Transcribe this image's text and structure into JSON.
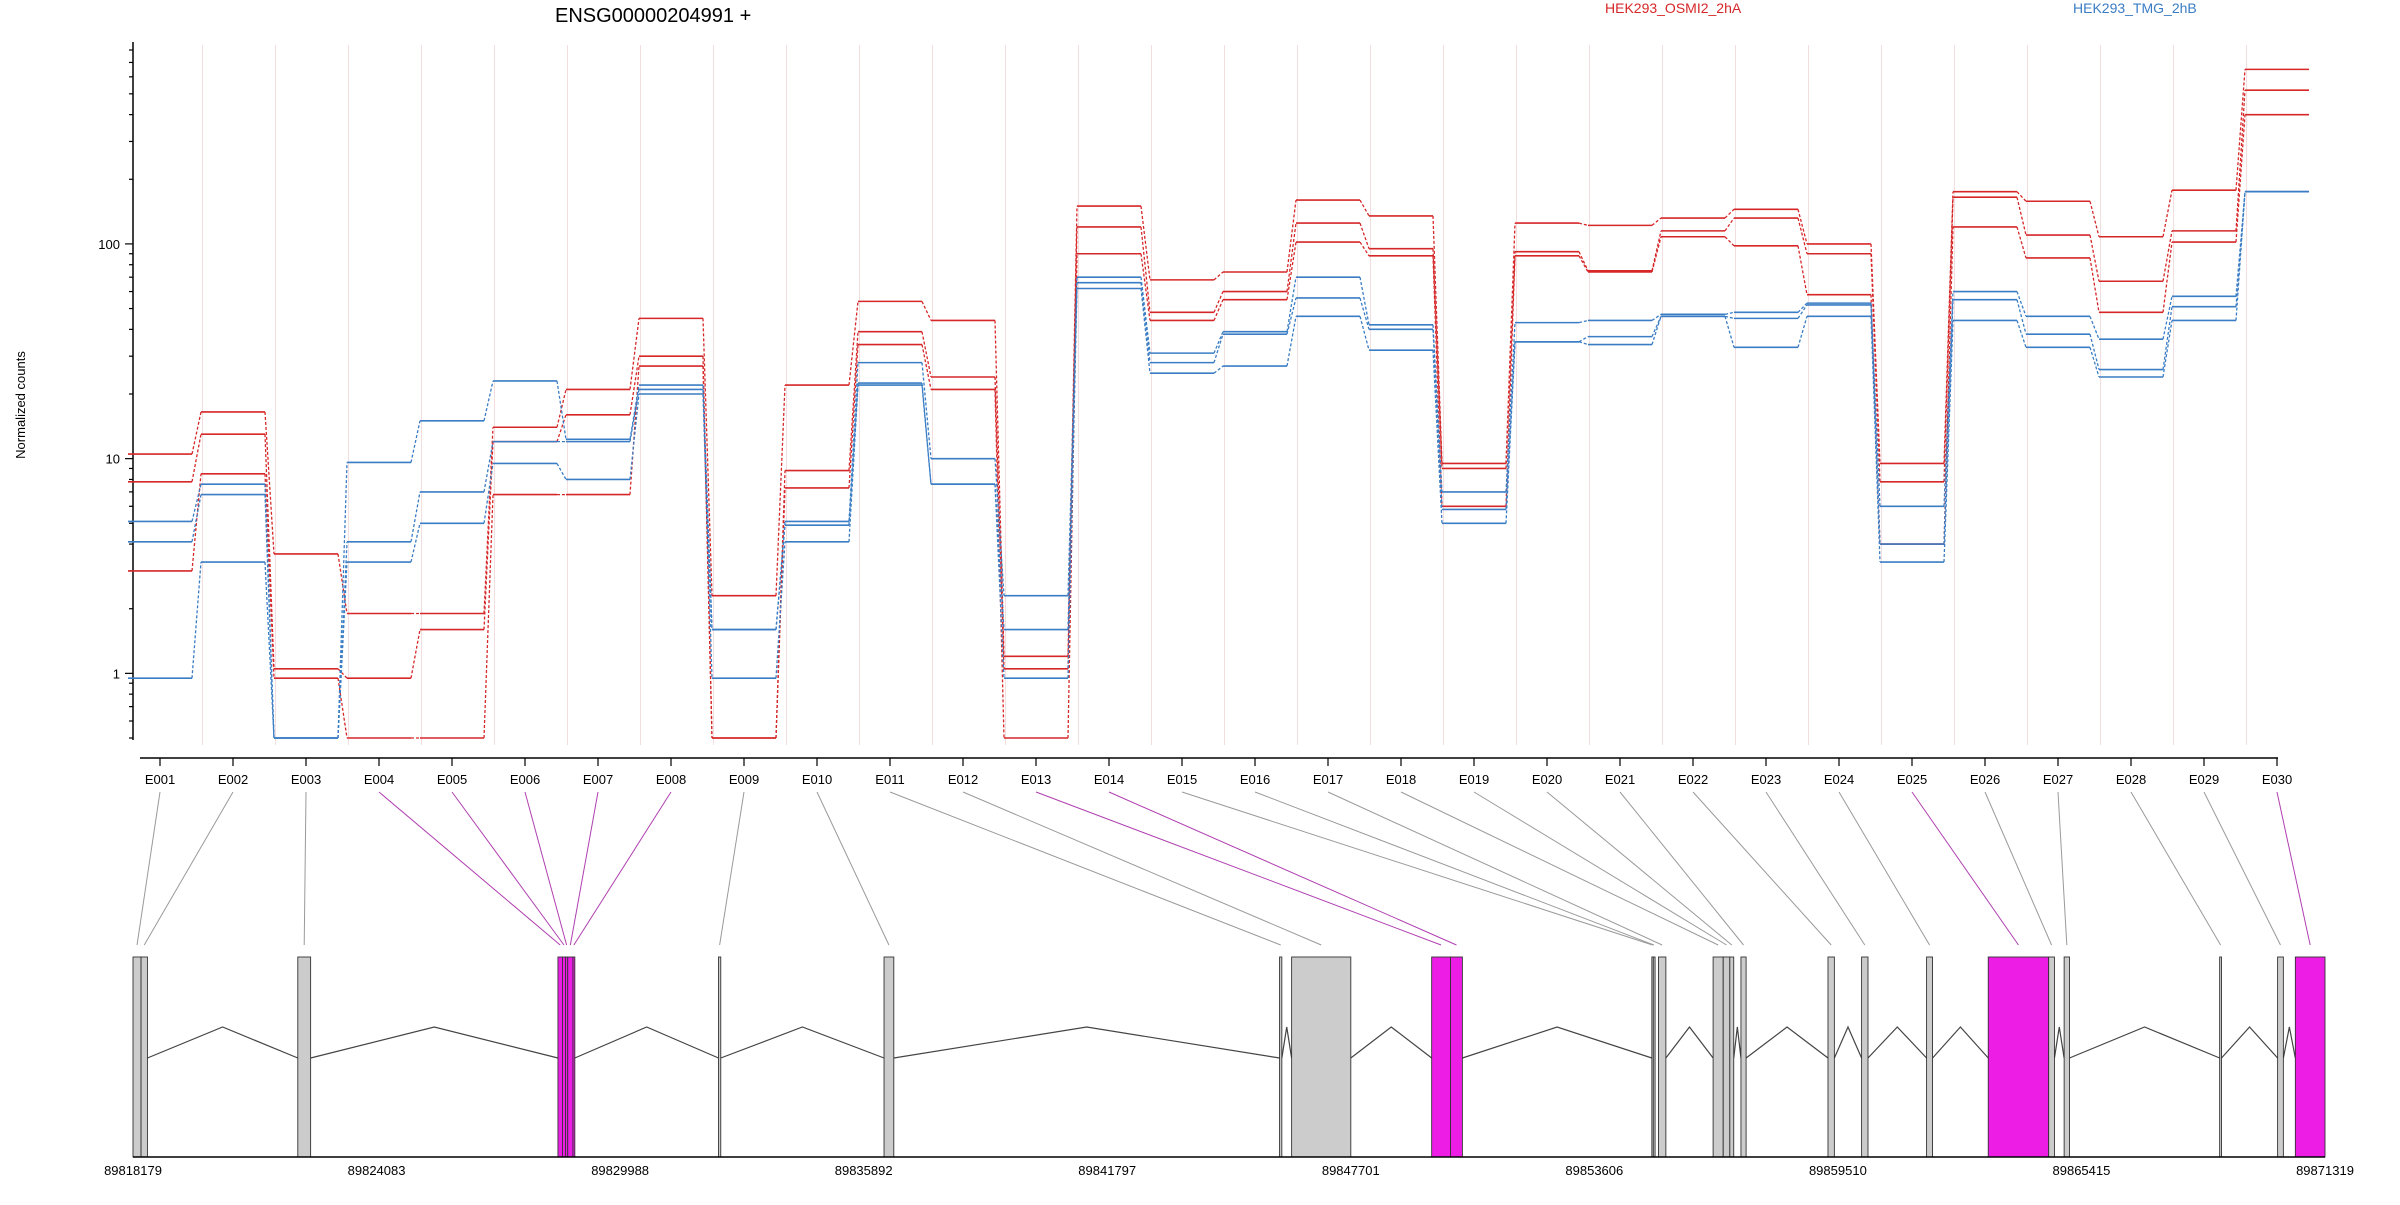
{
  "colors": {
    "condition_a": "#d62728",
    "condition_b": "#3a7dc4",
    "highlight": "#ee1de6",
    "exon_fill": "#cccccc",
    "map_line_default": "#9a9a9a",
    "map_line_highlight": "#b040b0"
  },
  "chart_data": {
    "type": "line",
    "title": "ENSG00000204991 +",
    "ylabel": "Normalized counts",
    "yscale": "log",
    "ylim": [
      0.5,
      800
    ],
    "yticks": [
      1,
      10,
      100
    ],
    "ytick_labels": [
      "1",
      "10",
      "100"
    ],
    "legend": [
      {
        "name": "HEK293_OSMI2_2hA",
        "color": "#d62728"
      },
      {
        "name": "HEK293_TMG_2hB",
        "color": "#3a7dc4"
      }
    ],
    "categories": [
      "E001",
      "E002",
      "E003",
      "E004",
      "E005",
      "E006",
      "E007",
      "E008",
      "E009",
      "E010",
      "E011",
      "E012",
      "E013",
      "E014",
      "E015",
      "E016",
      "E017",
      "E018",
      "E019",
      "E020",
      "E021",
      "E022",
      "E023",
      "E024",
      "E025",
      "E026",
      "E027",
      "E028",
      "E029",
      "E030"
    ],
    "series": [
      {
        "group": "HEK293_OSMI2_2hA",
        "color": "#d62728",
        "values": [
          10.5,
          16.5,
          3.6,
          1.9,
          1.9,
          14,
          21,
          45,
          2.3,
          22,
          54,
          44,
          1.2,
          150,
          68,
          74,
          160,
          135,
          9.5,
          125,
          122,
          132,
          145,
          100,
          9.5,
          175,
          158,
          108,
          178,
          650
        ]
      },
      {
        "group": "HEK293_OSMI2_2hA",
        "color": "#d62728",
        "values": [
          7.8,
          13,
          1.05,
          0.95,
          1.6,
          12,
          16,
          30,
          0.5,
          8.8,
          39,
          24,
          1.05,
          120,
          48,
          60,
          125,
          95,
          9,
          92,
          75,
          115,
          132,
          90,
          7.8,
          165,
          110,
          67,
          115,
          520
        ]
      },
      {
        "group": "HEK293_OSMI2_2hA",
        "color": "#d62728",
        "values": [
          3,
          8.5,
          0.95,
          0.5,
          0.5,
          6.8,
          6.8,
          27,
          0.5,
          7.3,
          34,
          21,
          0.5,
          90,
          44,
          55,
          102,
          88,
          6,
          88,
          74,
          108,
          98,
          58,
          4,
          120,
          86,
          48,
          102,
          400
        ]
      },
      {
        "group": "HEK293_TMG_2hB",
        "color": "#3a7dc4",
        "values": [
          5.1,
          7.6,
          0.5,
          9.6,
          15,
          23,
          12.3,
          22,
          1.6,
          5.1,
          28,
          10,
          2.3,
          70,
          31,
          39,
          70,
          42,
          7,
          43,
          44,
          47,
          48,
          53,
          6,
          60,
          46,
          36,
          57,
          175
        ]
      },
      {
        "group": "HEK293_TMG_2hB",
        "color": "#3a7dc4",
        "values": [
          4.1,
          6.8,
          0.5,
          4.1,
          7,
          12,
          12,
          21,
          1.6,
          4.9,
          22.5,
          7.6,
          1.6,
          66,
          28,
          38,
          56,
          40,
          5.8,
          35,
          37,
          46,
          45,
          52,
          4,
          55,
          38,
          26,
          51,
          175
        ]
      },
      {
        "group": "HEK293_TMG_2hB",
        "color": "#3a7dc4",
        "values": [
          0.95,
          3.3,
          0.5,
          3.3,
          5,
          9.5,
          8,
          20,
          0.95,
          4.1,
          22,
          7.6,
          0.95,
          62,
          25,
          27,
          46,
          32,
          5,
          35,
          34,
          46,
          33,
          46,
          3.3,
          44,
          33,
          24,
          44,
          175
        ]
      }
    ],
    "gene_model": {
      "coord_labels": [
        "89818179",
        "89824083",
        "89829988",
        "89835892",
        "89841797",
        "89847701",
        "89853606",
        "89859510",
        "89865415",
        "89871319"
      ],
      "coord_min": 89818179,
      "coord_max": 89871319,
      "exon_segments": [
        {
          "exon": "E001",
          "start": 89818179,
          "end": 89818374,
          "highlight": false
        },
        {
          "exon": "E002",
          "start": 89818374,
          "end": 89818529,
          "highlight": false
        },
        {
          "exon": "E003",
          "start": 89822174,
          "end": 89822485,
          "highlight": false
        },
        {
          "exon": "E004",
          "start": 89828481,
          "end": 89828590,
          "highlight": true
        },
        {
          "exon": "E005",
          "start": 89828590,
          "end": 89828663,
          "highlight": true
        },
        {
          "exon": "E006",
          "start": 89828663,
          "end": 89828718,
          "highlight": true
        },
        {
          "exon": "E007",
          "start": 89828718,
          "end": 89828845,
          "highlight": true
        },
        {
          "exon": "E008",
          "start": 89828845,
          "end": 89828890,
          "highlight": true
        },
        {
          "exon": "E009",
          "start": 89832373,
          "end": 89832428,
          "highlight": false
        },
        {
          "exon": "E010",
          "start": 89836386,
          "end": 89836623,
          "highlight": false
        },
        {
          "exon": "E011",
          "start": 89845975,
          "end": 89846030,
          "highlight": false
        },
        {
          "exon": "E012",
          "start": 89846267,
          "end": 89847702,
          "highlight": false
        },
        {
          "exon": "E013",
          "start": 89849662,
          "end": 89850119,
          "highlight": true
        },
        {
          "exon": "E014",
          "start": 89850119,
          "end": 89850407,
          "highlight": true
        },
        {
          "exon": "E015",
          "start": 89855000,
          "end": 89855035,
          "highlight": false
        },
        {
          "exon": "E016",
          "start": 89855035,
          "end": 89855070,
          "highlight": false
        },
        {
          "exon": "E017",
          "start": 89855160,
          "end": 89855340,
          "highlight": false
        },
        {
          "exon": "E018",
          "start": 89856485,
          "end": 89856730,
          "highlight": false
        },
        {
          "exon": "E019",
          "start": 89856730,
          "end": 89856890,
          "highlight": false
        },
        {
          "exon": "E020",
          "start": 89856890,
          "end": 89856985,
          "highlight": false
        },
        {
          "exon": "E021",
          "start": 89857160,
          "end": 89857285,
          "highlight": false
        },
        {
          "exon": "E022",
          "start": 89859270,
          "end": 89859425,
          "highlight": false
        },
        {
          "exon": "E023",
          "start": 89860085,
          "end": 89860240,
          "highlight": false
        },
        {
          "exon": "E024",
          "start": 89861660,
          "end": 89861805,
          "highlight": false
        },
        {
          "exon": "E025",
          "start": 89863155,
          "end": 89864620,
          "highlight": true
        },
        {
          "exon": "E026",
          "start": 89864620,
          "end": 89864760,
          "highlight": false
        },
        {
          "exon": "E027",
          "start": 89864995,
          "end": 89865125,
          "highlight": false
        },
        {
          "exon": "E028",
          "start": 89868765,
          "end": 89868810,
          "highlight": false
        },
        {
          "exon": "E029",
          "start": 89870170,
          "end": 89870310,
          "highlight": false
        },
        {
          "exon": "E030",
          "start": 89870600,
          "end": 89871319,
          "highlight": true
        }
      ],
      "junctions": [
        [
          89818529,
          89822174
        ],
        [
          89822485,
          89828481
        ],
        [
          89828890,
          89832373
        ],
        [
          89832428,
          89836386
        ],
        [
          89836623,
          89845975
        ],
        [
          89846030,
          89846267
        ],
        [
          89847702,
          89849662
        ],
        [
          89850407,
          89855000
        ],
        [
          89855340,
          89856485
        ],
        [
          89856985,
          89857160
        ],
        [
          89857285,
          89859270
        ],
        [
          89859425,
          89860085
        ],
        [
          89860240,
          89861660
        ],
        [
          89861805,
          89863155
        ],
        [
          89864760,
          89864995
        ],
        [
          89865125,
          89868765
        ],
        [
          89868810,
          89870170
        ],
        [
          89870310,
          89870600
        ]
      ]
    }
  }
}
